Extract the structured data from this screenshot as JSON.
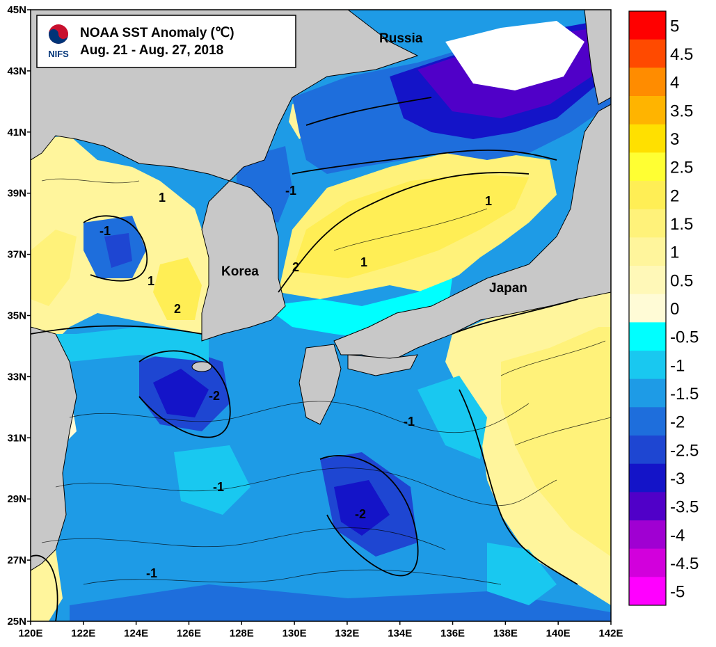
{
  "title": {
    "line1": "NOAA SST Anomaly (℃)",
    "line2": "Aug. 21 - Aug. 27, 2018",
    "logo_text": "NIFS"
  },
  "places": {
    "russia": "Russia",
    "korea": "Korea",
    "japan": "Japan"
  },
  "axes": {
    "y_ticks": [
      "45N",
      "43N",
      "41N",
      "39N",
      "37N",
      "35N",
      "33N",
      "31N",
      "29N",
      "27N",
      "25N"
    ],
    "x_ticks": [
      "120E",
      "122E",
      "124E",
      "126E",
      "128E",
      "130E",
      "132E",
      "134E",
      "136E",
      "138E",
      "140E",
      "142E"
    ],
    "lon_range": [
      120,
      142
    ],
    "lat_range": [
      25,
      45
    ]
  },
  "colorbar": {
    "labels": [
      "5",
      "4.5",
      "4",
      "3.5",
      "3",
      "2.5",
      "2",
      "1.5",
      "1",
      "0.5",
      "0",
      "-0.5",
      "-1",
      "-1.5",
      "-2",
      "-2.5",
      "-3",
      "-3.5",
      "-4",
      "-4.5",
      "-5"
    ],
    "colors": [
      "#ff0000",
      "#ff4a00",
      "#ff8c00",
      "#ffb400",
      "#ffe000",
      "#ffff33",
      "#ffee55",
      "#fff27a",
      "#fff59c",
      "#fff8b8",
      "#fffbd6",
      "#00ffff",
      "#19c8f0",
      "#1e9be6",
      "#1e6edc",
      "#1e46d2",
      "#1414c8",
      "#5000c8",
      "#a000d2",
      "#d200dc",
      "#ff00ff"
    ]
  },
  "contour_labels": {
    "k_-1_a": "-1",
    "k_-1_b": "-1",
    "k_-1_c": "-1",
    "k_-1_d": "-1",
    "k_-1_e": "-1",
    "k_-2_a": "-2",
    "k_-2_b": "-2",
    "k_1_a": "1",
    "k_1_b": "1",
    "k_1_c": "1",
    "k_1_d": "1",
    "k_2_a": "2",
    "k_2_b": "2"
  }
}
